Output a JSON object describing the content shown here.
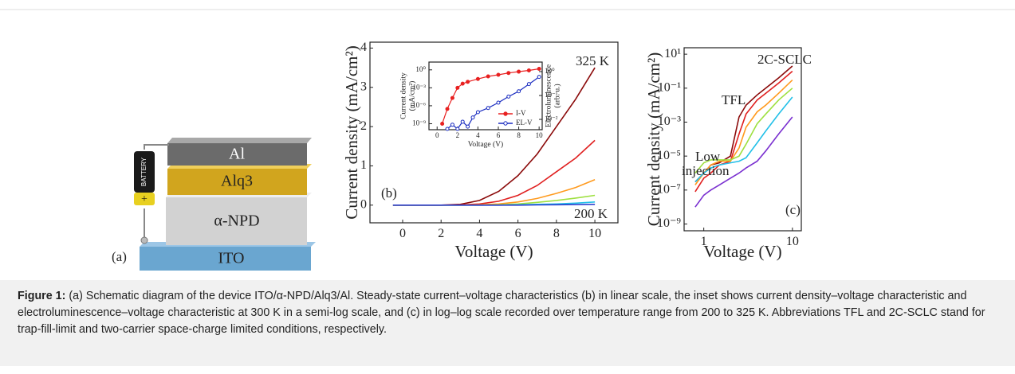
{
  "diagram": {
    "layers": [
      "Al",
      "Alq3",
      "α-NPD",
      "ITO"
    ],
    "battery_label": "BATTERY",
    "battery_plus": "+",
    "panel_label": "(a)"
  },
  "chart_data": [
    {
      "type": "line",
      "panel_label": "(b)",
      "xlabel": "Voltage (V)",
      "ylabel": "Current density (mA/cm²)",
      "xlim": [
        -1.7,
        11.2
      ],
      "ylim": [
        -0.45,
        4.15
      ],
      "xticks": [
        0,
        2,
        4,
        6,
        8,
        10
      ],
      "yticks": [
        0,
        1,
        2,
        3,
        4
      ],
      "annotations": [
        "325 K",
        "200 K"
      ],
      "x": [
        -0.5,
        0,
        1,
        2,
        3,
        4,
        5,
        6,
        7,
        8,
        9,
        10
      ],
      "series": [
        {
          "color": "#8b0a0a",
          "values": [
            0,
            0,
            0,
            0,
            0.02,
            0.12,
            0.35,
            0.75,
            1.3,
            2.0,
            2.7,
            3.5
          ]
        },
        {
          "color": "#e02020",
          "values": [
            0,
            0,
            0,
            0,
            0.005,
            0.03,
            0.1,
            0.25,
            0.5,
            0.85,
            1.2,
            1.65
          ]
        },
        {
          "color": "#ff9a1e",
          "values": [
            0,
            0,
            0,
            0,
            0,
            0.01,
            0.03,
            0.08,
            0.17,
            0.3,
            0.45,
            0.65
          ]
        },
        {
          "color": "#9ee040",
          "values": [
            0,
            0,
            0,
            0,
            0,
            0,
            0.01,
            0.03,
            0.07,
            0.12,
            0.18,
            0.25
          ]
        },
        {
          "color": "#22c0e8",
          "values": [
            0,
            0,
            0,
            0,
            0,
            0,
            0,
            0.01,
            0.02,
            0.03,
            0.05,
            0.08
          ]
        },
        {
          "color": "#3040d0",
          "values": [
            0,
            0,
            0,
            0,
            0,
            0,
            0,
            0,
            0.005,
            0.01,
            0.015,
            0.02
          ]
        }
      ]
    },
    {
      "type": "line",
      "xlabel": "Voltage (V)",
      "ylabel": [
        "Current density",
        "(mA/cm²)"
      ],
      "y2label": [
        "Electroluminescence",
        "(arb. u.)"
      ],
      "xlim": [
        -0.8,
        10.3
      ],
      "ylim": [
        1e-10,
        20
      ],
      "ylog": true,
      "y2lim": [
        0.0037,
        2.5
      ],
      "y2log": true,
      "xticks": [
        0,
        2,
        4,
        6,
        8,
        10
      ],
      "yticks": [
        {
          "value": 1,
          "label": "10⁰"
        },
        {
          "value": 0.001,
          "label": "10⁻³"
        },
        {
          "value": 1e-06,
          "label": "10⁻⁶"
        },
        {
          "value": 1e-09,
          "label": "10⁻⁹"
        }
      ],
      "y2ticks": [
        {
          "value": 1,
          "label": "10⁰"
        },
        {
          "value": 0.1,
          "label": "10⁻¹"
        },
        {
          "value": 0.01,
          "label": "10⁻²"
        }
      ],
      "legend": "lower right",
      "series": [
        {
          "name": "I-V",
          "color": "#e82020",
          "marker": "filled",
          "x": [
            0.5,
            1,
            1.5,
            2,
            2.5,
            3,
            4,
            5,
            6,
            7,
            8,
            9,
            10
          ],
          "values": [
            1e-09,
            3e-07,
            2e-05,
            0.001,
            0.005,
            0.01,
            0.03,
            0.08,
            0.15,
            0.3,
            0.5,
            0.8,
            1.5
          ]
        },
        {
          "name": "EL-V",
          "color": "#1a2cc0",
          "marker": "open",
          "axis": "y2",
          "x": [
            1,
            1.5,
            2,
            2.5,
            3,
            3.5,
            4,
            5,
            6,
            7,
            8,
            9,
            10
          ],
          "values": [
            0.004,
            0.006,
            0.004,
            0.008,
            0.005,
            0.012,
            0.02,
            0.03,
            0.05,
            0.09,
            0.15,
            0.3,
            0.6
          ]
        }
      ]
    },
    {
      "type": "line",
      "panel_label": "(c)",
      "xlabel": "Voltage (V)",
      "ylabel": "Current density (mA/cm²)",
      "xlim": [
        0.6,
        12.6
      ],
      "xlog": true,
      "ylim": [
        4e-10,
        24
      ],
      "ylog": true,
      "xticks": [
        1,
        10
      ],
      "yticks": [
        {
          "value": 10,
          "label": "10¹"
        },
        {
          "value": 0.1,
          "label": "10⁻¹"
        },
        {
          "value": 0.001,
          "label": "10⁻³"
        },
        {
          "value": 1e-05,
          "label": "10⁻⁵"
        },
        {
          "value": 1e-07,
          "label": "10⁻⁷"
        },
        {
          "value": 1e-09,
          "label": "10⁻⁹"
        }
      ],
      "annotations": [
        "2C-SCLC",
        "TFL",
        "Low",
        "injection"
      ],
      "x": [
        0.8,
        1,
        1.2,
        1.5,
        2,
        2.5,
        3,
        4,
        5,
        7,
        10
      ],
      "series": [
        {
          "color": "#8b0a0a",
          "values": [
            3e-07,
            1e-06,
            3e-06,
            4e-06,
            1e-05,
            0.002,
            0.01,
            0.04,
            0.1,
            0.4,
            2
          ]
        },
        {
          "color": "#e02020",
          "values": [
            8e-08,
            5e-07,
            1e-06,
            3e-06,
            5e-06,
            0.0002,
            0.003,
            0.02,
            0.05,
            0.2,
            1
          ]
        },
        {
          "color": "#ff9a1e",
          "values": [
            2e-07,
            1e-06,
            3e-06,
            5e-06,
            5e-06,
            3e-05,
            0.0005,
            0.004,
            0.01,
            0.05,
            0.3
          ]
        },
        {
          "color": "#9ee040",
          "values": [
            1e-06,
            4e-06,
            6e-06,
            6e-06,
            6e-06,
            1e-05,
            5e-05,
            0.0008,
            0.003,
            0.02,
            0.1
          ]
        },
        {
          "color": "#22c0e8",
          "values": [
            3e-07,
            1e-06,
            2e-06,
            3e-06,
            4e-06,
            5e-06,
            8e-06,
            6e-05,
            0.0003,
            0.003,
            0.03
          ]
        },
        {
          "color": "#7a30d0",
          "values": [
            1e-08,
            5e-08,
            1e-07,
            2e-07,
            5e-07,
            1e-06,
            2e-06,
            5e-06,
            2e-05,
            0.0002,
            0.002
          ]
        }
      ]
    }
  ],
  "caption": {
    "label": "Figure 1:",
    "text": "(a) Schematic diagram of the device ITO/α-NPD/Alq3/Al. Steady-state current–voltage characteristics (b) in linear scale, the inset shows current density–voltage characteristic and electroluminescence–voltage characteristic at 300 K in a semi-log scale, and (c) in log–log scale recorded over temperature range from 200 to 325 K. Abbreviations TFL and 2C-SCLC stand for trap-fill-limit and two-carrier space-charge limited conditions, respectively."
  }
}
